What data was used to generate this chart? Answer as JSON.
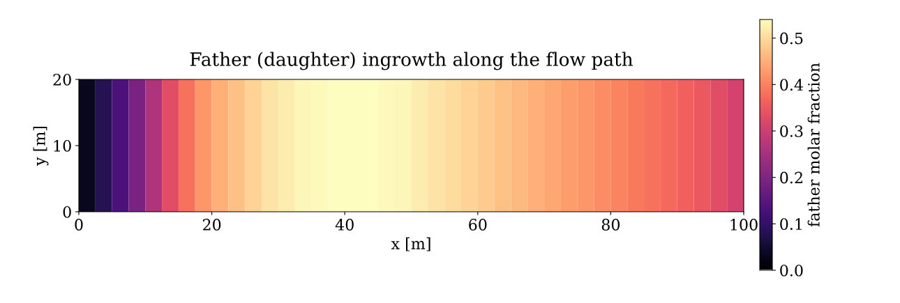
{
  "chart_data": {
    "type": "heatmap",
    "title": "Father (daughter) ingrowth along the flow path",
    "xlabel": "x [m]",
    "ylabel": "y [m]",
    "clabel": "father molar fraction",
    "x": [
      1.25,
      3.75,
      6.25,
      8.75,
      11.25,
      13.75,
      16.25,
      18.75,
      21.25,
      23.75,
      26.25,
      28.75,
      31.25,
      33.75,
      36.25,
      38.75,
      41.25,
      43.75,
      46.25,
      48.75,
      51.25,
      53.75,
      56.25,
      58.75,
      61.25,
      63.75,
      66.25,
      68.75,
      71.25,
      73.75,
      76.25,
      78.75,
      81.25,
      83.75,
      86.25,
      88.75,
      91.25,
      93.75,
      96.25,
      98.75
    ],
    "cells": [
      [
        0.03,
        0.08,
        0.13,
        0.19,
        0.26,
        0.33,
        0.38,
        0.42,
        0.45,
        0.47,
        0.49,
        0.51,
        0.52,
        0.53,
        0.535,
        0.54,
        0.54,
        0.54,
        0.535,
        0.53,
        0.52,
        0.51,
        0.5,
        0.49,
        0.48,
        0.47,
        0.46,
        0.45,
        0.44,
        0.43,
        0.42,
        0.41,
        0.4,
        0.39,
        0.38,
        0.37,
        0.36,
        0.35,
        0.33,
        0.31
      ]
    ],
    "xlim": [
      0,
      100
    ],
    "xticks": [
      0,
      20,
      40,
      60,
      80,
      100
    ],
    "ylim": [
      0,
      20
    ],
    "yticks": [
      0,
      10,
      20
    ],
    "clim": [
      0,
      0.54
    ],
    "cticks": [
      {
        "value": 0,
        "label": "0.0"
      },
      0.1,
      0.2,
      0.3,
      0.4,
      0.5
    ],
    "grid": false
  }
}
